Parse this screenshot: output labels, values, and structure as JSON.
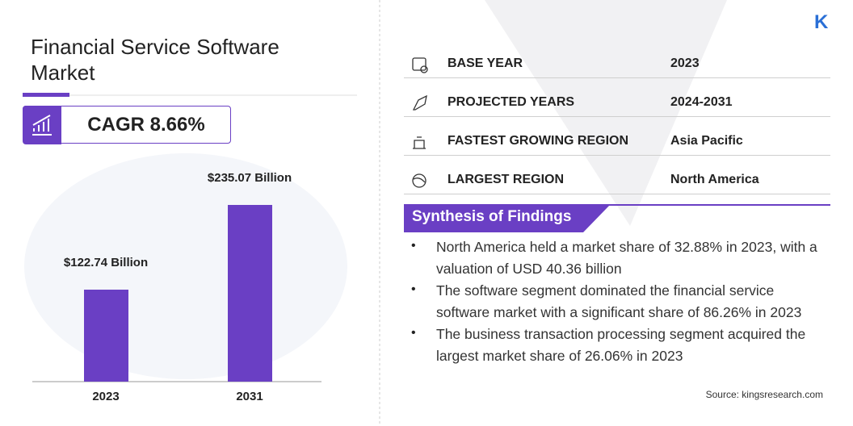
{
  "chart_data": {
    "type": "bar",
    "title": "Financial Service Software Market",
    "categories": [
      "2023",
      "2031"
    ],
    "values": [
      122.74,
      235.07
    ],
    "value_labels": [
      "$122.74 Billion",
      "$235.07 Billion"
    ],
    "color": "#6a3fc4"
  },
  "logo": "K",
  "cagr": "CAGR 8.66%",
  "facts": [
    {
      "label": "BASE YEAR",
      "value": "2023"
    },
    {
      "label": "PROJECTED YEARS",
      "value": "2024-2031"
    },
    {
      "label": "FASTEST GROWING REGION",
      "value": "Asia Pacific"
    },
    {
      "label": "LARGEST REGION",
      "value": "North America"
    }
  ],
  "findings": {
    "title": "Synthesis of Findings",
    "items": [
      "North America held a market share of 32.88% in 2023, with a valuation of USD 40.36 billion",
      "The software segment dominated the financial service software market with a significant share of 86.26% in 2023",
      "The business transaction processing segment acquired the largest market share of 26.06% in 2023"
    ]
  },
  "source": "Source: kingsresearch.com"
}
